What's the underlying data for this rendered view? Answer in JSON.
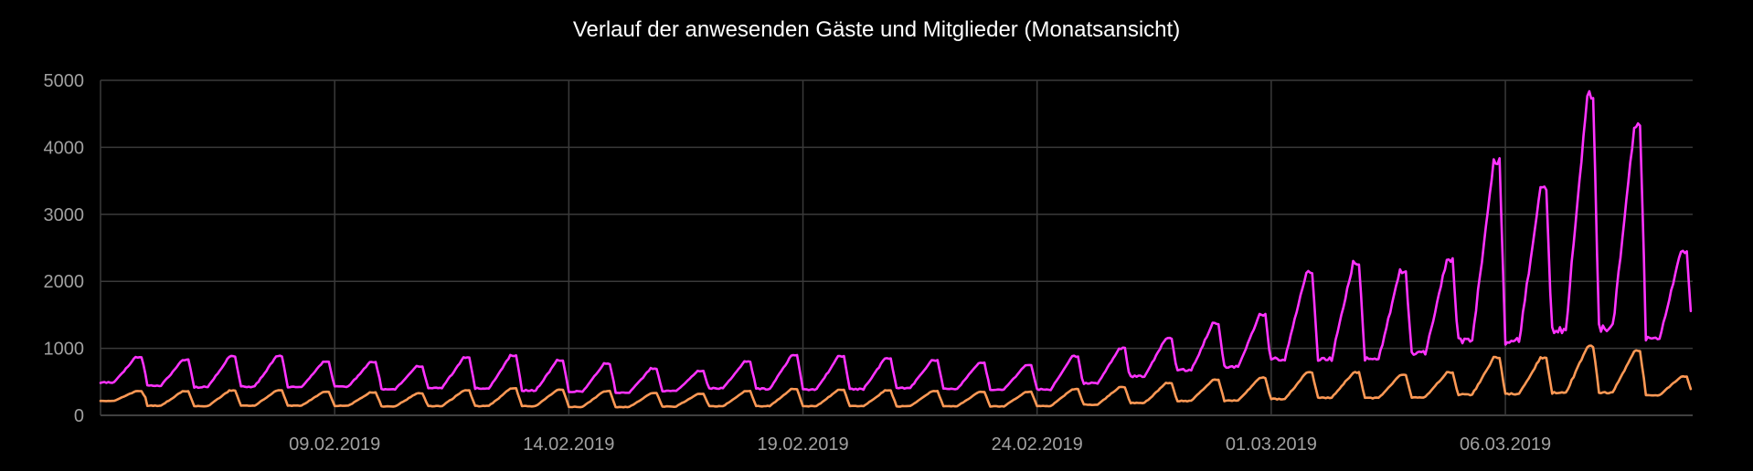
{
  "chart_data": {
    "type": "line",
    "title": "Verlauf der anwesenden Gäste und Mitglieder (Monatsansicht)",
    "xlabel": "",
    "ylabel": "",
    "ylim": [
      0,
      5000
    ],
    "xlim": [
      "2019-02-04",
      "2019-03-10"
    ],
    "grid": true,
    "legend": "none",
    "y_ticks": [
      0,
      1000,
      2000,
      3000,
      4000,
      5000
    ],
    "x_ticks": [
      {
        "date": "2019-02-09",
        "label": "09.02.2019"
      },
      {
        "date": "2019-02-14",
        "label": "14.02.2019"
      },
      {
        "date": "2019-02-19",
        "label": "19.02.2019"
      },
      {
        "date": "2019-02-24",
        "label": "24.02.2019"
      },
      {
        "date": "2019-03-01",
        "label": "01.03.2019"
      },
      {
        "date": "2019-03-06",
        "label": "06.03.2019"
      }
    ],
    "x": [
      "2019-02-04",
      "2019-02-05",
      "2019-02-06",
      "2019-02-07",
      "2019-02-08",
      "2019-02-09",
      "2019-02-10",
      "2019-02-11",
      "2019-02-12",
      "2019-02-13",
      "2019-02-14",
      "2019-02-15",
      "2019-02-16",
      "2019-02-17",
      "2019-02-18",
      "2019-02-19",
      "2019-02-20",
      "2019-02-21",
      "2019-02-22",
      "2019-02-23",
      "2019-02-24",
      "2019-02-25",
      "2019-02-26",
      "2019-02-27",
      "2019-02-28",
      "2019-03-01",
      "2019-03-02",
      "2019-03-03",
      "2019-03-04",
      "2019-03-05",
      "2019-03-06",
      "2019-03-07",
      "2019-03-08",
      "2019-03-09"
    ],
    "series": [
      {
        "color": "#ff33ff",
        "daily_min": [
          450,
          400,
          370,
          380,
          380,
          390,
          350,
          360,
          350,
          320,
          310,
          300,
          330,
          360,
          340,
          330,
          340,
          360,
          350,
          340,
          330,
          420,
          520,
          600,
          640,
          700,
          680,
          700,
          780,
          820,
          850,
          900,
          980,
          1000
        ],
        "daily_max": [
          870,
          830,
          880,
          880,
          800,
          790,
          730,
          860,
          890,
          820,
          770,
          700,
          660,
          800,
          890,
          880,
          850,
          820,
          780,
          750,
          880,
          1000,
          1150,
          1370,
          1500,
          2130,
          2280,
          2150,
          2320,
          3800,
          3400,
          4800,
          4300,
          2450
        ]
      },
      {
        "color": "#ff9955",
        "daily_min": [
          200,
          120,
          110,
          120,
          120,
          120,
          110,
          110,
          110,
          110,
          100,
          100,
          110,
          110,
          110,
          110,
          110,
          110,
          110,
          110,
          110,
          130,
          150,
          180,
          180,
          200,
          220,
          220,
          230,
          250,
          260,
          260,
          270,
          270
        ],
        "daily_max": [
          360,
          360,
          370,
          370,
          350,
          340,
          330,
          370,
          400,
          380,
          360,
          330,
          320,
          360,
          390,
          380,
          370,
          360,
          350,
          350,
          390,
          420,
          480,
          530,
          560,
          640,
          640,
          600,
          640,
          860,
          860,
          1030,
          960,
          580
        ]
      }
    ]
  }
}
